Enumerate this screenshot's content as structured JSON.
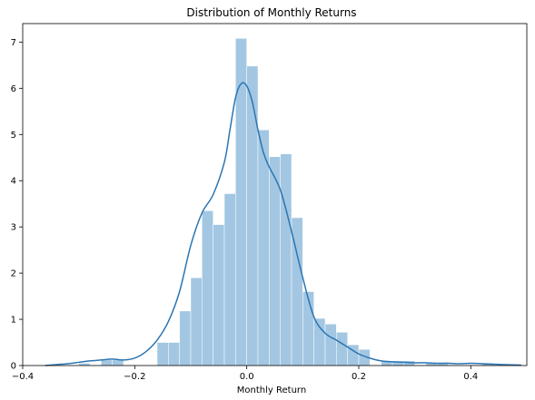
{
  "chart_data": {
    "type": "bar",
    "title": "Distribution of Monthly Returns",
    "xlabel": "Monthly Return",
    "ylabel": "",
    "xlim": [
      -0.4,
      0.5
    ],
    "ylim": [
      0,
      7.4
    ],
    "x_ticks": [
      -0.4,
      -0.2,
      0.0,
      0.2,
      0.4
    ],
    "x_tick_labels": [
      "−0.4",
      "−0.2",
      "0.0",
      "0.2",
      "0.4"
    ],
    "y_ticks": [
      0,
      1,
      2,
      3,
      4,
      5,
      6,
      7
    ],
    "y_tick_labels": [
      "0",
      "1",
      "2",
      "3",
      "4",
      "5",
      "6",
      "7"
    ],
    "grid": false,
    "bar_color": "#a3c7e2",
    "line_color": "#2b75b2",
    "histogram": {
      "bin_edges": [
        -0.3,
        -0.28,
        -0.26,
        -0.24,
        -0.22,
        -0.2,
        -0.18,
        -0.16,
        -0.14,
        -0.12,
        -0.1,
        -0.08,
        -0.06,
        -0.04,
        -0.02,
        0.0,
        0.02,
        0.04,
        0.06,
        0.08,
        0.1,
        0.12,
        0.14,
        0.16,
        0.18,
        0.2,
        0.22,
        0.24,
        0.26,
        0.28,
        0.3,
        0.32,
        0.34,
        0.36,
        0.38,
        0.4,
        0.42,
        0.44
      ],
      "values": [
        0.05,
        0.0,
        0.12,
        0.12,
        0.0,
        0.0,
        0.0,
        0.5,
        0.5,
        1.18,
        1.9,
        3.35,
        3.05,
        3.72,
        7.08,
        6.48,
        5.1,
        4.52,
        4.58,
        3.2,
        1.6,
        1.02,
        0.9,
        0.72,
        0.45,
        0.35,
        0.0,
        0.1,
        0.1,
        0.1,
        0.0,
        0.05,
        0.05,
        0.0,
        0.0,
        0.0,
        0.05
      ]
    },
    "kde": {
      "x": [
        -0.36,
        -0.34,
        -0.32,
        -0.3,
        -0.28,
        -0.26,
        -0.24,
        -0.22,
        -0.2,
        -0.18,
        -0.16,
        -0.14,
        -0.12,
        -0.1,
        -0.08,
        -0.06,
        -0.04,
        -0.03,
        -0.02,
        -0.01,
        0.0,
        0.01,
        0.02,
        0.03,
        0.04,
        0.06,
        0.08,
        0.1,
        0.12,
        0.14,
        0.16,
        0.18,
        0.2,
        0.22,
        0.24,
        0.26,
        0.28,
        0.3,
        0.32,
        0.34,
        0.36,
        0.38,
        0.4,
        0.42,
        0.44,
        0.46,
        0.49
      ],
      "y": [
        0.0,
        0.02,
        0.04,
        0.07,
        0.1,
        0.12,
        0.14,
        0.12,
        0.16,
        0.3,
        0.55,
        0.95,
        1.6,
        2.6,
        3.3,
        3.7,
        4.4,
        5.1,
        5.8,
        6.1,
        6.05,
        5.7,
        5.1,
        4.6,
        4.3,
        3.8,
        2.9,
        1.9,
        1.05,
        0.7,
        0.55,
        0.4,
        0.25,
        0.16,
        0.1,
        0.08,
        0.07,
        0.06,
        0.06,
        0.05,
        0.05,
        0.04,
        0.05,
        0.04,
        0.03,
        0.02,
        0.01
      ]
    }
  }
}
